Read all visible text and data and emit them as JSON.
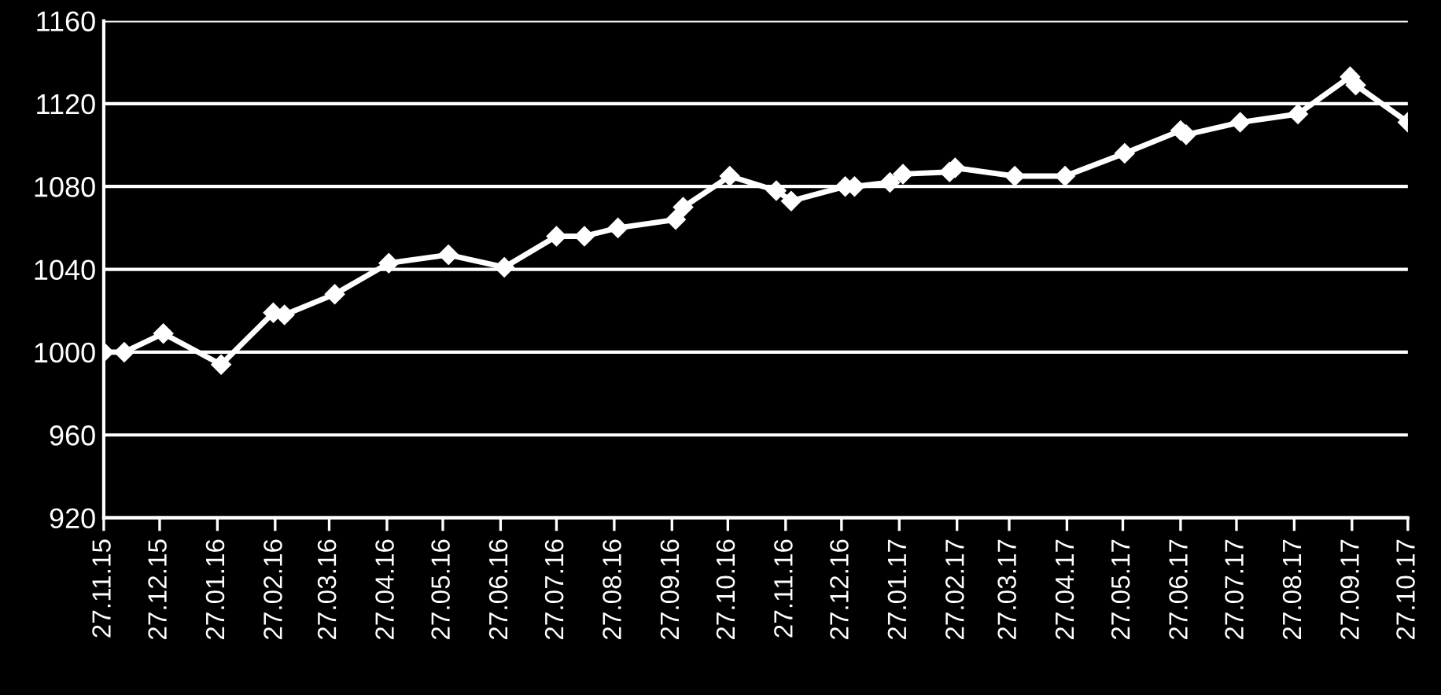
{
  "chart_data": {
    "type": "line",
    "color": "#ffffff",
    "marker": "diamond",
    "line_style": "solid",
    "grid": "y",
    "x": [
      "2015-11-27",
      "2015-12-08",
      "2015-12-29",
      "2016-01-29",
      "2016-02-26",
      "2016-03-03",
      "2016-03-30",
      "2016-04-28",
      "2016-05-30",
      "2016-06-29",
      "2016-07-27",
      "2016-08-11",
      "2016-08-29",
      "2016-09-29",
      "2016-10-03",
      "2016-10-28",
      "2016-11-22",
      "2016-11-30",
      "2016-12-29",
      "2017-01-03",
      "2017-01-22",
      "2017-01-29",
      "2017-02-23",
      "2017-02-26",
      "2017-03-30",
      "2017-04-26",
      "2017-05-28",
      "2017-06-27",
      "2017-06-30",
      "2017-07-29",
      "2017-08-29",
      "2017-09-26",
      "2017-09-29",
      "2017-10-27"
    ],
    "values": [
      1000,
      1000,
      1009,
      994,
      1019,
      1018,
      1028,
      1043,
      1047,
      1041,
      1056,
      1056,
      1060,
      1064,
      1070,
      1085,
      1078,
      1073,
      1080,
      1080,
      1082,
      1086,
      1087,
      1089,
      1085,
      1085,
      1096,
      1107,
      1105,
      1111,
      1115,
      1133,
      1129,
      1111
    ],
    "xlim": [
      "2015-11-27",
      "2017-10-27"
    ],
    "xticks": [
      {
        "value": "2015-11-27",
        "label": "27.11.15"
      },
      {
        "value": "2015-12-27",
        "label": "27.12.15"
      },
      {
        "value": "2016-01-27",
        "label": "27.01.16"
      },
      {
        "value": "2016-02-27",
        "label": "27.02.16"
      },
      {
        "value": "2016-03-27",
        "label": "27.03.16"
      },
      {
        "value": "2016-04-27",
        "label": "27.04.16"
      },
      {
        "value": "2016-05-27",
        "label": "27.05.16"
      },
      {
        "value": "2016-06-27",
        "label": "27.06.16"
      },
      {
        "value": "2016-07-27",
        "label": "27.07.16"
      },
      {
        "value": "2016-08-27",
        "label": "27.08.16"
      },
      {
        "value": "2016-09-27",
        "label": "27.09.16"
      },
      {
        "value": "2016-10-27",
        "label": "27.10.16"
      },
      {
        "value": "2016-11-27",
        "label": "27.11.16"
      },
      {
        "value": "2016-12-27",
        "label": "27.12.16"
      },
      {
        "value": "2017-01-27",
        "label": "27.01.17"
      },
      {
        "value": "2017-02-27",
        "label": "27.02.17"
      },
      {
        "value": "2017-03-27",
        "label": "27.03.17"
      },
      {
        "value": "2017-04-27",
        "label": "27.04.17"
      },
      {
        "value": "2017-05-27",
        "label": "27.05.17"
      },
      {
        "value": "2017-06-27",
        "label": "27.06.17"
      },
      {
        "value": "2017-07-27",
        "label": "27.07.17"
      },
      {
        "value": "2017-08-27",
        "label": "27.08.17"
      },
      {
        "value": "2017-09-27",
        "label": "27.09.17"
      },
      {
        "value": "2017-10-27",
        "label": "27.10.17"
      }
    ],
    "ylim": [
      920,
      1160
    ],
    "yticks": [
      920,
      960,
      1000,
      1040,
      1080,
      1120,
      1160
    ]
  }
}
